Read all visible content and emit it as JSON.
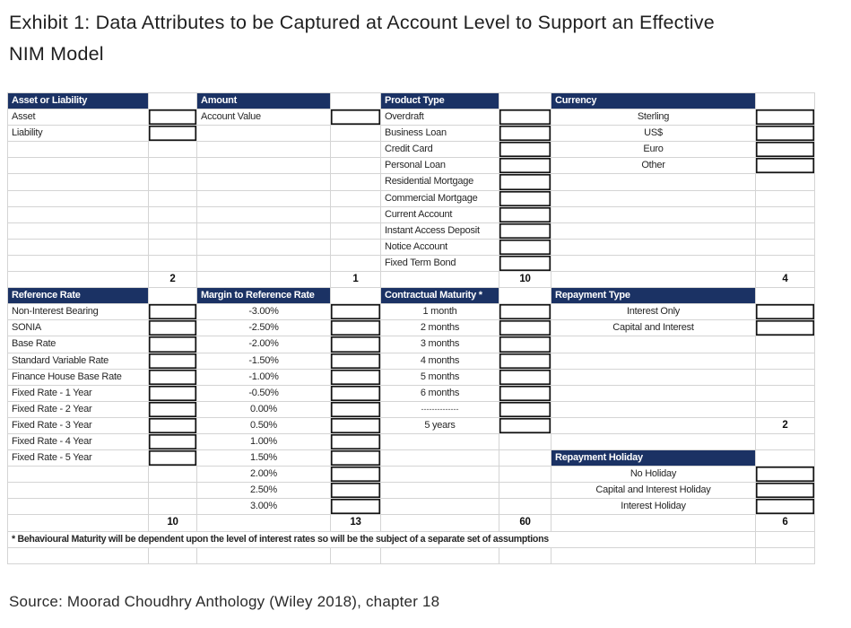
{
  "title": {
    "line1": "Exhibit 1: Data Attributes to be Captured at Account Level to Support an Effective",
    "line2": "NIM Model"
  },
  "source": "Source: Moorad Choudhry Anthology (Wiley 2018), chapter 18",
  "colors": {
    "header_bg": "#1b3264",
    "header_text": "#ffffff",
    "gridline": "#d4d4d4",
    "input_box_border": "#141414"
  },
  "table": {
    "column_groups": [
      "Asset or Liability",
      "Amount",
      "Product Type",
      "Currency",
      "Reference Rate",
      "Margin to Reference Rate",
      "Contractual Maturity *",
      "Repayment Type",
      "Repayment Holiday"
    ],
    "counts": {
      "asset_or_liability": "2",
      "amount": "1",
      "product_type": "10",
      "currency": "4",
      "reference_rate": "10",
      "margin_to_reference_rate": "13",
      "contractual_maturity": "60",
      "repayment_type": "2",
      "repayment_holiday_total": "6"
    },
    "rows": [
      [
        {
          "s": "h",
          "t": "Asset or Liability"
        },
        {
          "s": "e"
        },
        {
          "s": "h",
          "t": "Amount"
        },
        {
          "s": "e"
        },
        {
          "s": "h",
          "t": "Product Type"
        },
        {
          "s": "e"
        },
        {
          "s": "h",
          "t": "Currency"
        },
        {
          "s": "e"
        }
      ],
      [
        {
          "s": "l",
          "t": "Asset"
        },
        {
          "s": "b"
        },
        {
          "s": "l",
          "t": "Account Value"
        },
        {
          "s": "b"
        },
        {
          "s": "l",
          "t": "Overdraft"
        },
        {
          "s": "b"
        },
        {
          "s": "c",
          "t": "Sterling"
        },
        {
          "s": "b"
        }
      ],
      [
        {
          "s": "l",
          "t": "Liability"
        },
        {
          "s": "b"
        },
        {
          "s": "e"
        },
        {
          "s": "e"
        },
        {
          "s": "l",
          "t": "Business Loan"
        },
        {
          "s": "b"
        },
        {
          "s": "c",
          "t": "US$"
        },
        {
          "s": "b"
        }
      ],
      [
        {
          "s": "e"
        },
        {
          "s": "e"
        },
        {
          "s": "e"
        },
        {
          "s": "e"
        },
        {
          "s": "l",
          "t": "Credit Card"
        },
        {
          "s": "b"
        },
        {
          "s": "c",
          "t": "Euro"
        },
        {
          "s": "b"
        }
      ],
      [
        {
          "s": "e"
        },
        {
          "s": "e"
        },
        {
          "s": "e"
        },
        {
          "s": "e"
        },
        {
          "s": "l",
          "t": "Personal Loan"
        },
        {
          "s": "b"
        },
        {
          "s": "c",
          "t": "Other"
        },
        {
          "s": "b"
        }
      ],
      [
        {
          "s": "e"
        },
        {
          "s": "e"
        },
        {
          "s": "e"
        },
        {
          "s": "e"
        },
        {
          "s": "l",
          "t": "Residential Mortgage"
        },
        {
          "s": "b"
        },
        {
          "s": "e"
        },
        {
          "s": "e"
        }
      ],
      [
        {
          "s": "e"
        },
        {
          "s": "e"
        },
        {
          "s": "e"
        },
        {
          "s": "e"
        },
        {
          "s": "l",
          "t": "Commercial Mortgage"
        },
        {
          "s": "b"
        },
        {
          "s": "e"
        },
        {
          "s": "e"
        }
      ],
      [
        {
          "s": "e"
        },
        {
          "s": "e"
        },
        {
          "s": "e"
        },
        {
          "s": "e"
        },
        {
          "s": "l",
          "t": "Current Account"
        },
        {
          "s": "b"
        },
        {
          "s": "e"
        },
        {
          "s": "e"
        }
      ],
      [
        {
          "s": "e"
        },
        {
          "s": "e"
        },
        {
          "s": "e"
        },
        {
          "s": "e"
        },
        {
          "s": "l",
          "t": "Instant Access Deposit"
        },
        {
          "s": "b"
        },
        {
          "s": "e"
        },
        {
          "s": "e"
        }
      ],
      [
        {
          "s": "e"
        },
        {
          "s": "e"
        },
        {
          "s": "e"
        },
        {
          "s": "e"
        },
        {
          "s": "l",
          "t": "Notice Account"
        },
        {
          "s": "b"
        },
        {
          "s": "e"
        },
        {
          "s": "e"
        }
      ],
      [
        {
          "s": "e"
        },
        {
          "s": "e"
        },
        {
          "s": "e"
        },
        {
          "s": "e"
        },
        {
          "s": "l",
          "t": "Fixed Term Bond"
        },
        {
          "s": "b"
        },
        {
          "s": "e"
        },
        {
          "s": "e"
        }
      ],
      [
        {
          "s": "e"
        },
        {
          "s": "n",
          "t": "2"
        },
        {
          "s": "e"
        },
        {
          "s": "n",
          "t": "1"
        },
        {
          "s": "e"
        },
        {
          "s": "n",
          "t": "10"
        },
        {
          "s": "e"
        },
        {
          "s": "n",
          "t": "4"
        }
      ],
      [
        {
          "s": "h",
          "t": "Reference Rate"
        },
        {
          "s": "e"
        },
        {
          "s": "h",
          "t": "Margin to Reference Rate"
        },
        {
          "s": "e"
        },
        {
          "s": "h",
          "t": "Contractual Maturity *"
        },
        {
          "s": "e"
        },
        {
          "s": "h",
          "t": "Repayment Type"
        },
        {
          "s": "e"
        }
      ],
      [
        {
          "s": "l",
          "t": "Non-Interest Bearing"
        },
        {
          "s": "b"
        },
        {
          "s": "c",
          "t": "-3.00%"
        },
        {
          "s": "b"
        },
        {
          "s": "c",
          "t": "1 month"
        },
        {
          "s": "b"
        },
        {
          "s": "c",
          "t": "Interest Only"
        },
        {
          "s": "b"
        }
      ],
      [
        {
          "s": "l",
          "t": "SONIA"
        },
        {
          "s": "b"
        },
        {
          "s": "c",
          "t": "-2.50%"
        },
        {
          "s": "b"
        },
        {
          "s": "c",
          "t": "2 months"
        },
        {
          "s": "b"
        },
        {
          "s": "c",
          "t": "Capital and Interest"
        },
        {
          "s": "b"
        }
      ],
      [
        {
          "s": "l",
          "t": "Base Rate"
        },
        {
          "s": "b"
        },
        {
          "s": "c",
          "t": "-2.00%"
        },
        {
          "s": "b"
        },
        {
          "s": "c",
          "t": "3 months"
        },
        {
          "s": "b"
        },
        {
          "s": "e"
        },
        {
          "s": "e"
        }
      ],
      [
        {
          "s": "l",
          "t": "Standard Variable Rate"
        },
        {
          "s": "b"
        },
        {
          "s": "c",
          "t": "-1.50%"
        },
        {
          "s": "b"
        },
        {
          "s": "c",
          "t": "4 months"
        },
        {
          "s": "b"
        },
        {
          "s": "e"
        },
        {
          "s": "e"
        }
      ],
      [
        {
          "s": "l",
          "t": "Finance House Base Rate"
        },
        {
          "s": "b"
        },
        {
          "s": "c",
          "t": "-1.00%"
        },
        {
          "s": "b"
        },
        {
          "s": "c",
          "t": "5 months"
        },
        {
          "s": "b"
        },
        {
          "s": "e"
        },
        {
          "s": "e"
        }
      ],
      [
        {
          "s": "l",
          "t": "Fixed Rate - 1 Year"
        },
        {
          "s": "b"
        },
        {
          "s": "c",
          "t": "-0.50%"
        },
        {
          "s": "b"
        },
        {
          "s": "c",
          "t": "6 months"
        },
        {
          "s": "b"
        },
        {
          "s": "e"
        },
        {
          "s": "e"
        }
      ],
      [
        {
          "s": "l",
          "t": "Fixed Rate - 2 Year"
        },
        {
          "s": "b"
        },
        {
          "s": "c",
          "t": "0.00%"
        },
        {
          "s": "b"
        },
        {
          "s": "d",
          "t": "--------------"
        },
        {
          "s": "b"
        },
        {
          "s": "e"
        },
        {
          "s": "e"
        }
      ],
      [
        {
          "s": "l",
          "t": "Fixed Rate - 3 Year"
        },
        {
          "s": "b"
        },
        {
          "s": "c",
          "t": "0.50%"
        },
        {
          "s": "b"
        },
        {
          "s": "c",
          "t": "5 years"
        },
        {
          "s": "b"
        },
        {
          "s": "e"
        },
        {
          "s": "n",
          "t": "2"
        }
      ],
      [
        {
          "s": "l",
          "t": "Fixed Rate - 4 Year"
        },
        {
          "s": "b"
        },
        {
          "s": "c",
          "t": "1.00%"
        },
        {
          "s": "b"
        },
        {
          "s": "e"
        },
        {
          "s": "e"
        },
        {
          "s": "e"
        },
        {
          "s": "e"
        }
      ],
      [
        {
          "s": "l",
          "t": "Fixed Rate - 5 Year"
        },
        {
          "s": "b"
        },
        {
          "s": "c",
          "t": "1.50%"
        },
        {
          "s": "b"
        },
        {
          "s": "e"
        },
        {
          "s": "e"
        },
        {
          "s": "h",
          "t": "Repayment Holiday"
        },
        {
          "s": "e"
        }
      ],
      [
        {
          "s": "e"
        },
        {
          "s": "e"
        },
        {
          "s": "c",
          "t": "2.00%"
        },
        {
          "s": "b"
        },
        {
          "s": "e"
        },
        {
          "s": "e"
        },
        {
          "s": "c",
          "t": "No Holiday"
        },
        {
          "s": "b"
        }
      ],
      [
        {
          "s": "e"
        },
        {
          "s": "e"
        },
        {
          "s": "c",
          "t": "2.50%"
        },
        {
          "s": "b"
        },
        {
          "s": "e"
        },
        {
          "s": "e"
        },
        {
          "s": "c",
          "t": "Capital and Interest Holiday"
        },
        {
          "s": "b"
        }
      ],
      [
        {
          "s": "e"
        },
        {
          "s": "e"
        },
        {
          "s": "c",
          "t": "3.00%"
        },
        {
          "s": "b"
        },
        {
          "s": "e"
        },
        {
          "s": "e"
        },
        {
          "s": "c",
          "t": "Interest Holiday"
        },
        {
          "s": "b"
        }
      ],
      [
        {
          "s": "e"
        },
        {
          "s": "n",
          "t": "10"
        },
        {
          "s": "e"
        },
        {
          "s": "n",
          "t": "13"
        },
        {
          "s": "e"
        },
        {
          "s": "n",
          "t": "60"
        },
        {
          "s": "e"
        },
        {
          "s": "n",
          "t": "6"
        }
      ],
      [
        {
          "s": "f",
          "t": "* Behavioural Maturity will be dependent upon the level of interest rates so will be the subject of a separate set of assumptions",
          "span": 7
        },
        {
          "s": "e"
        }
      ],
      [
        {
          "s": "e"
        },
        {
          "s": "e"
        },
        {
          "s": "e"
        },
        {
          "s": "e"
        },
        {
          "s": "e"
        },
        {
          "s": "e"
        },
        {
          "s": "e"
        },
        {
          "s": "e"
        }
      ]
    ]
  }
}
